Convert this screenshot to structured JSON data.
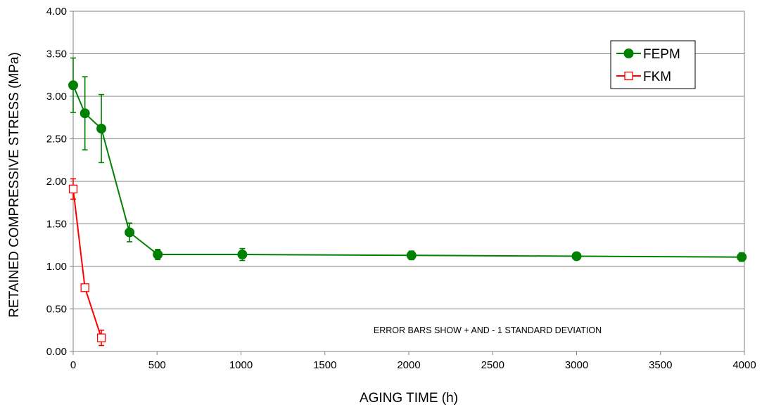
{
  "chart_data": {
    "type": "line",
    "title": "",
    "xlabel": "AGING TIME (h)",
    "ylabel": "RETAINED COMPRESSIVE STRESS (MPa)",
    "xlim": [
      0,
      4000
    ],
    "ylim": [
      0,
      4
    ],
    "x_ticks": [
      0,
      500,
      1000,
      1500,
      2000,
      2500,
      3000,
      3500,
      4000
    ],
    "x_tick_labels": [
      "0",
      "500",
      "1000",
      "1500",
      "2000",
      "2500",
      "3000",
      "3500",
      "4000"
    ],
    "y_ticks": [
      0,
      0.5,
      1,
      1.5,
      2,
      2.5,
      3,
      3.5,
      4
    ],
    "y_tick_labels": [
      "0.00",
      "0.50",
      "1.00",
      "1.50",
      "2.00",
      "2.50",
      "3.00",
      "3.50",
      "4.00"
    ],
    "grid": "horizontal",
    "legend_position": "top-right",
    "annotation": "ERROR BARS SHOW + AND - 1 STANDARD DEVIATION",
    "series": [
      {
        "name": "FEPM",
        "color": "#008000",
        "marker": "filled-circle",
        "x": [
          0,
          70,
          168,
          336,
          504,
          1008,
          2016,
          3000,
          3984
        ],
        "y": [
          3.13,
          2.8,
          2.62,
          1.4,
          1.14,
          1.14,
          1.13,
          1.12,
          1.11
        ],
        "error": [
          0.32,
          0.43,
          0.4,
          0.11,
          0.06,
          0.07,
          0.05,
          0.04,
          0.05
        ]
      },
      {
        "name": "FKM",
        "color": "#ff0000",
        "marker": "open-square",
        "x": [
          0,
          70,
          168
        ],
        "y": [
          1.91,
          0.75,
          0.16
        ],
        "error": [
          0.12,
          0.04,
          0.09
        ]
      }
    ]
  }
}
